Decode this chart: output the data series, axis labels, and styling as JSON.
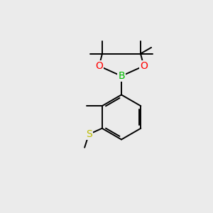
{
  "background_color": "#ebebeb",
  "bond_color": "#000000",
  "atom_colors": {
    "B": "#00bb00",
    "O": "#ff0000",
    "S": "#bbbb00",
    "C": "#000000"
  },
  "figsize": [
    3.0,
    3.0
  ],
  "dpi": 100
}
